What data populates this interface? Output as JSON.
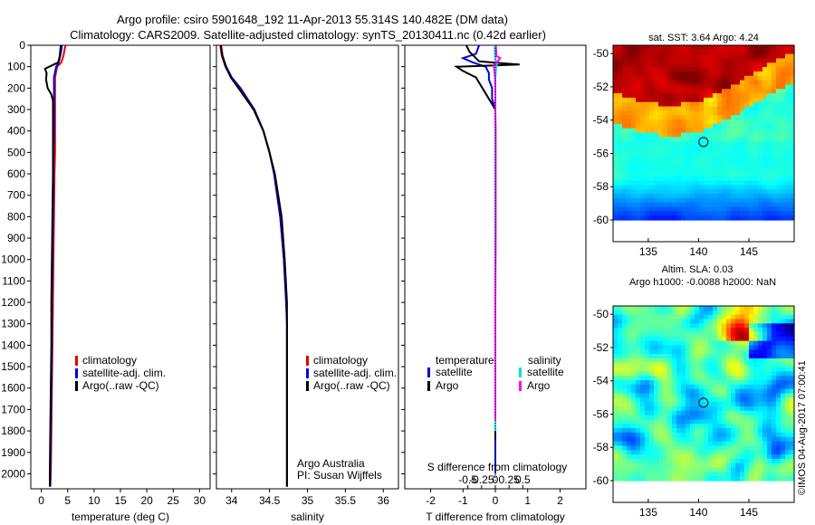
{
  "header": {
    "line1": "Argo profile: csiro 5901648_192 11-Apr-2013 55.314S 140.482E (DM data)",
    "line2": "Climatology: CARS2009. Satellite-adjusted climatology: synTS_20130411.nc (0.42d earlier)"
  },
  "colors": {
    "climatology": "#e00000",
    "satellite": "#0000e0",
    "argo": "#000000",
    "sal_satellite": "#00e0e0",
    "sal_argo": "#ff00ff"
  },
  "chart_data": [
    {
      "id": "temperature",
      "type": "line",
      "xlabel": "temperature (deg C)",
      "ylabel": "",
      "xlim": [
        -2,
        32
      ],
      "ylim": [
        2070,
        0
      ],
      "xticks": [
        0,
        5,
        10,
        15,
        20,
        25,
        30
      ],
      "yticks": [
        0,
        100,
        200,
        300,
        400,
        500,
        600,
        700,
        800,
        900,
        1000,
        1100,
        1200,
        1300,
        1400,
        1500,
        1600,
        1700,
        1800,
        1900,
        2000
      ],
      "legend": {
        "position": "center-right",
        "entries": [
          "climatology",
          "satellite-adj. clim.",
          "Argo(..raw -QC)"
        ]
      },
      "series": [
        {
          "name": "climatology",
          "color": "#e00000",
          "depth": [
            0,
            20,
            50,
            80,
            100,
            150,
            200,
            250,
            300,
            400,
            500,
            600,
            800,
            1000,
            1200,
            1400,
            1600,
            1800,
            2000,
            2060
          ],
          "values": [
            4.6,
            4.4,
            4.2,
            3.8,
            3.0,
            2.6,
            2.6,
            2.6,
            2.6,
            2.6,
            2.6,
            2.5,
            2.4,
            2.3,
            2.2,
            2.1,
            2.0,
            1.9,
            1.8,
            1.7
          ]
        },
        {
          "name": "satellite-adj. clim.",
          "color": "#0000e0",
          "depth": [
            0,
            20,
            50,
            80,
            100,
            150,
            200,
            250,
            300,
            400,
            500,
            600,
            800,
            1000,
            1200,
            1400,
            1600,
            1800,
            2000,
            2060
          ],
          "values": [
            3.9,
            3.8,
            3.6,
            3.3,
            2.8,
            2.4,
            2.4,
            2.4,
            2.4,
            2.4,
            2.3,
            2.3,
            2.2,
            2.1,
            2.0,
            2.0,
            1.9,
            1.8,
            1.7,
            1.7
          ]
        },
        {
          "name": "Argo(..raw -QC)",
          "color": "#000000",
          "depth": [
            0,
            20,
            50,
            80,
            100,
            110,
            130,
            160,
            200,
            230,
            260,
            300,
            400,
            600,
            800,
            1000,
            1200,
            1400,
            1600,
            1800,
            2000,
            2060
          ],
          "values": [
            3.7,
            3.6,
            3.5,
            3.2,
            1.5,
            0.7,
            1.0,
            0.9,
            1.2,
            1.9,
            2.2,
            2.2,
            2.2,
            2.2,
            2.1,
            2.0,
            1.9,
            1.9,
            1.8,
            1.7,
            1.6,
            1.6
          ]
        }
      ]
    },
    {
      "id": "salinity",
      "type": "line",
      "xlabel": "salinity",
      "xlim": [
        33.8,
        36.2
      ],
      "ylim": [
        2070,
        0
      ],
      "xticks": [
        34,
        34.5,
        35,
        35.5,
        36
      ],
      "xticklabels": [
        "34",
        "34.5",
        "35",
        "35.5",
        "36"
      ],
      "legend": {
        "position": "center-right",
        "entries": [
          "climatology",
          "satellite-adj. clim.",
          "Argo(..raw -QC)"
        ]
      },
      "annotation": [
        "Argo Australia",
        "PI: Susan Wijffels"
      ],
      "series": [
        {
          "name": "climatology",
          "color": "#e00000",
          "depth": [
            0,
            50,
            100,
            150,
            200,
            300,
            400,
            500,
            600,
            800,
            1000,
            1200,
            1300,
            1400,
            2060
          ],
          "values": [
            33.85,
            33.87,
            33.92,
            34.0,
            34.12,
            34.3,
            34.42,
            34.5,
            34.56,
            34.64,
            34.69,
            34.72,
            34.73,
            34.73,
            34.73
          ]
        },
        {
          "name": "satellite-adj. clim.",
          "color": "#0000e0",
          "depth": [
            0,
            50,
            100,
            150,
            200,
            300,
            400,
            500,
            600,
            800,
            1000,
            1200,
            1300,
            1400,
            2060
          ],
          "values": [
            33.86,
            33.88,
            33.93,
            34.0,
            34.11,
            34.3,
            34.42,
            34.5,
            34.56,
            34.64,
            34.69,
            34.72,
            34.73,
            34.73,
            34.73
          ]
        },
        {
          "name": "Argo(..raw -QC)",
          "color": "#000000",
          "depth": [
            0,
            50,
            100,
            150,
            200,
            300,
            400,
            500,
            600,
            800,
            1000,
            1200,
            1300,
            1400,
            2060
          ],
          "values": [
            33.86,
            33.88,
            33.92,
            33.99,
            34.09,
            34.29,
            34.42,
            34.5,
            34.57,
            34.66,
            34.7,
            34.73,
            34.73,
            34.73,
            34.73
          ]
        }
      ]
    },
    {
      "id": "differences",
      "type": "line",
      "xlabel": "T difference from climatology",
      "xlabel2": "S difference from climatology",
      "xlim": [
        -2.8,
        2.8
      ],
      "ylim": [
        2070,
        0
      ],
      "xticks": [
        -2,
        -1,
        0,
        1,
        2
      ],
      "xticks2": [
        -0.5,
        -0.25,
        0,
        0.25,
        0.5
      ],
      "xticklabels2": [
        "-0.5",
        "-0.25",
        "0",
        "0.25",
        "0.5"
      ],
      "legend_titles": [
        "temperature",
        "salinity"
      ],
      "legend_entries_t": [
        "satellite",
        "Argo"
      ],
      "legend_entries_s": [
        "satellite",
        "Argo"
      ],
      "series": [
        {
          "name": "T satellite",
          "color": "#0000e0",
          "depth": [
            0,
            40,
            60,
            80,
            100,
            130,
            160,
            200,
            250,
            300,
            500,
            800,
            1200,
            1600,
            2000
          ],
          "values": [
            -0.5,
            -0.6,
            -1.0,
            -0.7,
            -0.3,
            -0.2,
            -0.2,
            -0.1,
            -0.1,
            0.0,
            0.0,
            0.0,
            0.0,
            0.0,
            0.0
          ]
        },
        {
          "name": "T Argo",
          "color": "#000000",
          "depth": [
            0,
            30,
            60,
            75,
            85,
            90,
            100,
            120,
            150,
            200,
            250,
            300,
            400,
            600,
            1000,
            1500,
            1840
          ],
          "values": [
            -0.9,
            -0.8,
            -0.6,
            -0.5,
            0.3,
            0.75,
            -1.2,
            -1.0,
            -0.6,
            -0.4,
            -0.2,
            0.0,
            0.0,
            0.0,
            0.0,
            0.0,
            0.0
          ]
        },
        {
          "name": "S satellite",
          "color": "#00e0e0",
          "depth": [
            0,
            50,
            70,
            80,
            100,
            150,
            200,
            300,
            500,
            800,
            1200,
            1600,
            1800
          ],
          "values": [
            -0.02,
            -0.01,
            0.01,
            0.05,
            0.03,
            0.0,
            0.0,
            0.0,
            0.0,
            0.0,
            0.0,
            0.0,
            0.0
          ]
        },
        {
          "name": "S Argo",
          "color": "#ff00ff",
          "depth": [
            0,
            50,
            60,
            80,
            90,
            150,
            200,
            300,
            400,
            500,
            700,
            900,
            1200,
            1600,
            1750
          ],
          "values": [
            0.02,
            0.03,
            0.15,
            0.05,
            -0.05,
            -0.01,
            0.0,
            0.0,
            0.01,
            0.01,
            0.01,
            0.01,
            0.0,
            0.0,
            0.0
          ]
        }
      ]
    },
    {
      "id": "sst_map",
      "type": "heatmap",
      "title": "sat. SST: 3.64  Argo: 4.24",
      "xlim": [
        131.5,
        149.5
      ],
      "ylim": [
        -60,
        -49.5
      ],
      "xticks": [
        135,
        140,
        145
      ],
      "yticks": [
        -50,
        -52,
        -54,
        -56,
        -58,
        -60
      ],
      "marker": {
        "lon": 140.482,
        "lat": -55.314
      }
    },
    {
      "id": "sla_map",
      "type": "heatmap",
      "title": "Altim. SLA: 0.03",
      "subtitle": "Argo h1000: -0.0088  h2000: NaN",
      "xlim": [
        131.5,
        149.5
      ],
      "ylim": [
        -60,
        -49.5
      ],
      "xticks": [
        135,
        140,
        145
      ],
      "yticks": [
        -50,
        -52,
        -54,
        -56,
        -58,
        -60
      ],
      "marker": {
        "lon": 140.482,
        "lat": -55.314
      }
    }
  ],
  "footer": {
    "copyright": "©IMOS 04-Aug-2017 07:00:41"
  }
}
